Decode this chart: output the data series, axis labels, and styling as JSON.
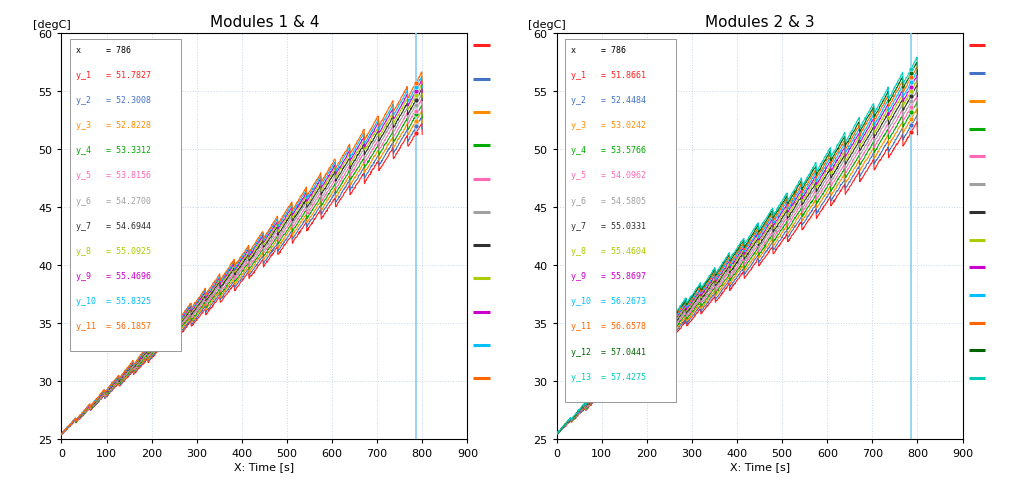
{
  "title_left": "Modules 1 & 4",
  "title_right": "Modules 2 & 3",
  "xlabel": "X: Time [s]",
  "ylabel": "[degC]",
  "xlim": [
    0,
    900
  ],
  "ylim": [
    25,
    60
  ],
  "yticks": [
    25,
    30,
    35,
    40,
    45,
    50,
    55,
    60
  ],
  "xticks": [
    0,
    100,
    200,
    300,
    400,
    500,
    600,
    700,
    800,
    900
  ],
  "vline_x": 786,
  "colors": [
    "#FF2020",
    "#4472C4",
    "#FF8C00",
    "#00AA00",
    "#FF69B4",
    "#A0A0A0",
    "#303030",
    "#AACC00",
    "#CC00CC",
    "#00BFFF",
    "#FF6600",
    "#006400",
    "#00CCBB"
  ],
  "left_y_at_786": [
    51.7827,
    52.3008,
    52.8228,
    53.3312,
    53.8156,
    54.27,
    54.6944,
    55.0925,
    55.4696,
    55.8325,
    56.1857
  ],
  "right_y_at_786": [
    51.8661,
    52.4484,
    53.0242,
    53.5766,
    54.0962,
    54.5805,
    55.0331,
    55.4604,
    55.8697,
    56.2673,
    56.6578,
    57.0441,
    57.4275
  ],
  "start_temp": 25.5,
  "vline_color": "#87CEEB",
  "background_color": "#FFFFFF",
  "grid_color": "#C8D8E8"
}
